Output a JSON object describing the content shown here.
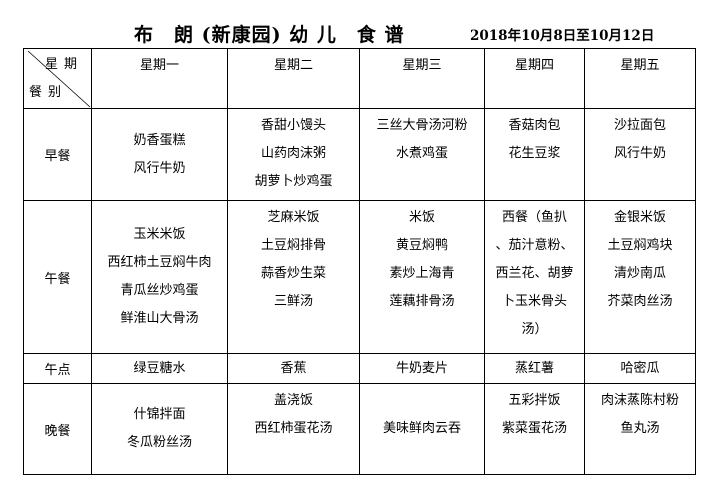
{
  "title": "布　朗 (新康园) 幼 儿　食 谱",
  "date_range": "2018年10月8日至10月12日",
  "corner": {
    "top": "星期",
    "bottom": "餐别"
  },
  "days": [
    "星期一",
    "星期二",
    "星期三",
    "星期四",
    "星期五"
  ],
  "meals": [
    {
      "label": "早餐",
      "cells": [
        [
          "奶香蛋糕",
          "风行牛奶"
        ],
        [
          "香甜小馒头",
          "山药肉沫粥",
          "胡萝卜炒鸡蛋"
        ],
        [
          "三丝大骨汤河粉",
          "水煮鸡蛋"
        ],
        [
          "香菇肉包",
          "花生豆浆"
        ],
        [
          "沙拉面包",
          "风行牛奶"
        ]
      ]
    },
    {
      "label": "午餐",
      "cells": [
        [
          "玉米米饭",
          "西红柿土豆焖牛肉",
          "青瓜丝炒鸡蛋",
          "鲜淮山大骨汤"
        ],
        [
          "芝麻米饭",
          "土豆焖排骨",
          "蒜香炒生菜",
          "三鲜汤"
        ],
        [
          "米饭",
          "黄豆焖鸭",
          "素炒上海青",
          "莲藕排骨汤"
        ],
        [
          "西餐（鱼扒",
          "、茄汁意粉、",
          "西兰花、胡萝",
          "卜玉米骨头",
          "汤）"
        ],
        [
          "金银米饭",
          "土豆焖鸡块",
          "清炒南瓜",
          "芥菜肉丝汤"
        ]
      ]
    },
    {
      "label": "午点",
      "cells": [
        [
          "绿豆糖水"
        ],
        [
          "香蕉"
        ],
        [
          "牛奶麦片"
        ],
        [
          "蒸红薯"
        ],
        [
          "哈密瓜"
        ]
      ]
    },
    {
      "label": "晚餐",
      "cells": [
        [
          "什锦拌面",
          "冬瓜粉丝汤"
        ],
        [
          "盖浇饭",
          "西红柿蛋花汤"
        ],
        [
          "美味鲜肉云吞"
        ],
        [
          "五彩拌饭",
          "紫菜蛋花汤"
        ],
        [
          "肉沫蒸陈村粉",
          "鱼丸汤"
        ]
      ]
    }
  ]
}
